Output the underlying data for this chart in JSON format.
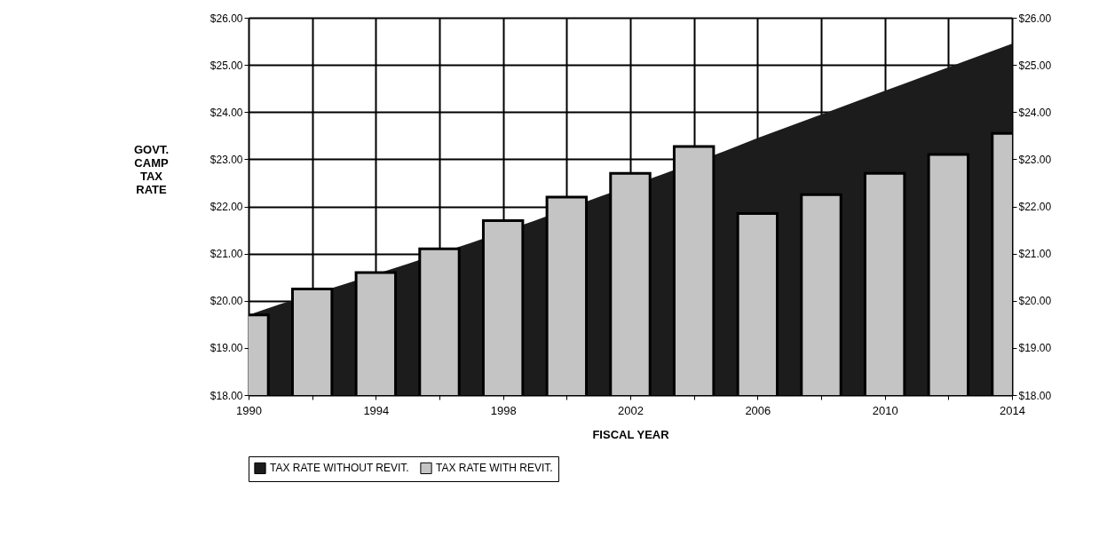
{
  "chart_data": {
    "type": "bar",
    "xlabel": "FISCAL YEAR",
    "ylabel": "GOVT. CAMP TAX RATE",
    "x": [
      1990,
      1992,
      1994,
      1996,
      1998,
      2000,
      2002,
      2004,
      2006,
      2008,
      2010,
      2012,
      2014
    ],
    "series": [
      {
        "name": "TAX RATE WITHOUT REVIT.",
        "type": "area",
        "color": "#1c1c1c",
        "x": [
          1990,
          1991,
          1993,
          1995,
          1997,
          1999,
          2001,
          2003,
          2005,
          2006,
          2008,
          2010,
          2012,
          2014
        ],
        "values": [
          19.7,
          19.93,
          20.35,
          20.78,
          21.23,
          21.7,
          22.2,
          22.68,
          23.18,
          23.45,
          23.95,
          24.45,
          24.95,
          25.45
        ]
      },
      {
        "name": "TAX RATE WITH REVIT.",
        "color": "#c4c4c4",
        "values": [
          19.7,
          20.25,
          20.6,
          21.1,
          21.7,
          22.2,
          22.7,
          23.27,
          21.85,
          22.25,
          22.7,
          23.1,
          23.55
        ]
      }
    ],
    "xlim": [
      1990,
      2014
    ],
    "xticks": [
      1990,
      {
        "value": 1992,
        "label": null
      },
      1994,
      {
        "value": 1996,
        "label": null
      },
      1998,
      {
        "value": 2000,
        "label": null
      },
      2002,
      {
        "value": 2004,
        "label": null
      },
      2006,
      {
        "value": 2008,
        "label": null
      },
      2010,
      {
        "value": 2012,
        "label": null
      },
      2014
    ],
    "ylim": [
      18,
      26
    ],
    "yticks": [
      {
        "value": 18,
        "label": "$18.00"
      },
      {
        "value": 19,
        "label": "$19.00"
      },
      {
        "value": 20,
        "label": "$20.00"
      },
      {
        "value": 21,
        "label": "$21.00"
      },
      {
        "value": 22,
        "label": "$22.00"
      },
      {
        "value": 23,
        "label": "$23.00"
      },
      {
        "value": 24,
        "label": "$24.00"
      },
      {
        "value": 25,
        "label": "$25.00"
      },
      {
        "value": 26,
        "label": "$26.00"
      }
    ],
    "y2lim": [
      18,
      26
    ],
    "y2ticks": [
      {
        "value": 18,
        "label": "$18.00"
      },
      {
        "value": 19,
        "label": "$19.00"
      },
      {
        "value": 20,
        "label": "$20.00"
      },
      {
        "value": 21,
        "label": "$21.00"
      },
      {
        "value": 22,
        "label": "$22.00"
      },
      {
        "value": 23,
        "label": "$23.00"
      },
      {
        "value": 24,
        "label": "$24.00"
      },
      {
        "value": 25,
        "label": "$25.00"
      },
      {
        "value": 26,
        "label": "$26.00"
      }
    ],
    "grid": true,
    "legend": "bottom"
  }
}
